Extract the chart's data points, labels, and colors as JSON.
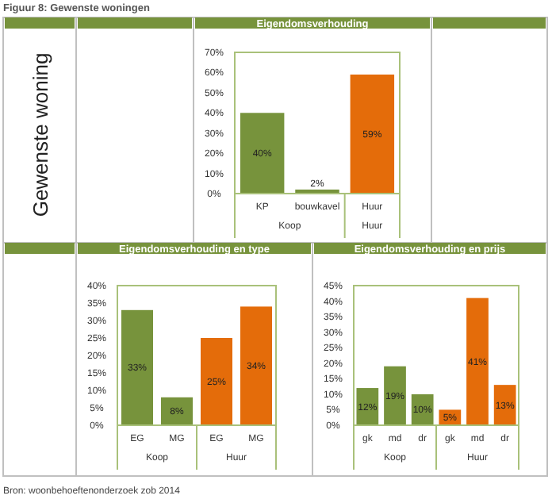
{
  "chart_data": [
    {
      "type": "bar",
      "title": "Eigendomsverhouding",
      "categories": [
        "KP",
        "bouwkavel",
        "Huur"
      ],
      "values": [
        40,
        2,
        59
      ],
      "colors": [
        "#77933c",
        "#77933c",
        "#e46c0a"
      ],
      "value_labels": [
        "40%",
        "2%",
        "59%"
      ],
      "ylim": [
        0,
        70
      ],
      "yticks": [
        {
          "value": 0,
          "label": "0%"
        },
        {
          "value": 10,
          "label": "10%"
        },
        {
          "value": 20,
          "label": "20%"
        },
        {
          "value": 30,
          "label": "30%"
        },
        {
          "value": 40,
          "label": "40%"
        },
        {
          "value": 50,
          "label": "50%"
        },
        {
          "value": 60,
          "label": "60%"
        },
        {
          "value": 70,
          "label": "70%"
        }
      ],
      "annotations": [
        "Koop",
        "Huur",
        "Figuur 8: Gewenste woningen",
        "Gewenste woning"
      ]
    },
    {
      "type": "bar",
      "title": "Eigendomsverhouding en type",
      "categories": [
        "EG",
        "MG",
        "EG",
        "MG"
      ],
      "values": [
        33,
        8,
        25,
        34
      ],
      "colors": [
        "#77933c",
        "#77933c",
        "#e46c0a",
        "#e46c0a"
      ],
      "value_labels": [
        "33%",
        "8%",
        "25%",
        "34%"
      ],
      "ylim": [
        0,
        40
      ],
      "yticks": [
        {
          "value": 0,
          "label": "0%"
        },
        {
          "value": 5,
          "label": "5%"
        },
        {
          "value": 10,
          "label": "10%"
        },
        {
          "value": 15,
          "label": "15%"
        },
        {
          "value": 20,
          "label": "20%"
        },
        {
          "value": 25,
          "label": "25%"
        },
        {
          "value": 30,
          "label": "30%"
        },
        {
          "value": 35,
          "label": "35%"
        },
        {
          "value": 40,
          "label": "40%"
        }
      ],
      "annotations": [
        "Koop",
        "Huur",
        "Bron: woonbehoeftenonderzoek zob 2014"
      ]
    },
    {
      "type": "bar",
      "title": "Eigendomsverhouding en prijs",
      "categories": [
        "gk",
        "md",
        "dr",
        "gk",
        "md",
        "dr"
      ],
      "values": [
        12,
        19,
        10,
        5,
        41,
        13
      ],
      "colors": [
        "#77933c",
        "#77933c",
        "#77933c",
        "#e46c0a",
        "#e46c0a",
        "#e46c0a"
      ],
      "value_labels": [
        "12%",
        "19%",
        "10%",
        "5%",
        "41%",
        "13%"
      ],
      "ylim": [
        0,
        45
      ],
      "yticks": [
        {
          "value": 0,
          "label": "0%"
        },
        {
          "value": 5,
          "label": "5%"
        },
        {
          "value": 10,
          "label": "10%"
        },
        {
          "value": 15,
          "label": "15%"
        },
        {
          "value": 20,
          "label": "20%"
        },
        {
          "value": 25,
          "label": "25%"
        },
        {
          "value": 30,
          "label": "30%"
        },
        {
          "value": 35,
          "label": "35%"
        },
        {
          "value": 40,
          "label": "40%"
        },
        {
          "value": 45,
          "label": "45%"
        }
      ],
      "annotations": [
        "Koop",
        "Huur"
      ]
    }
  ]
}
